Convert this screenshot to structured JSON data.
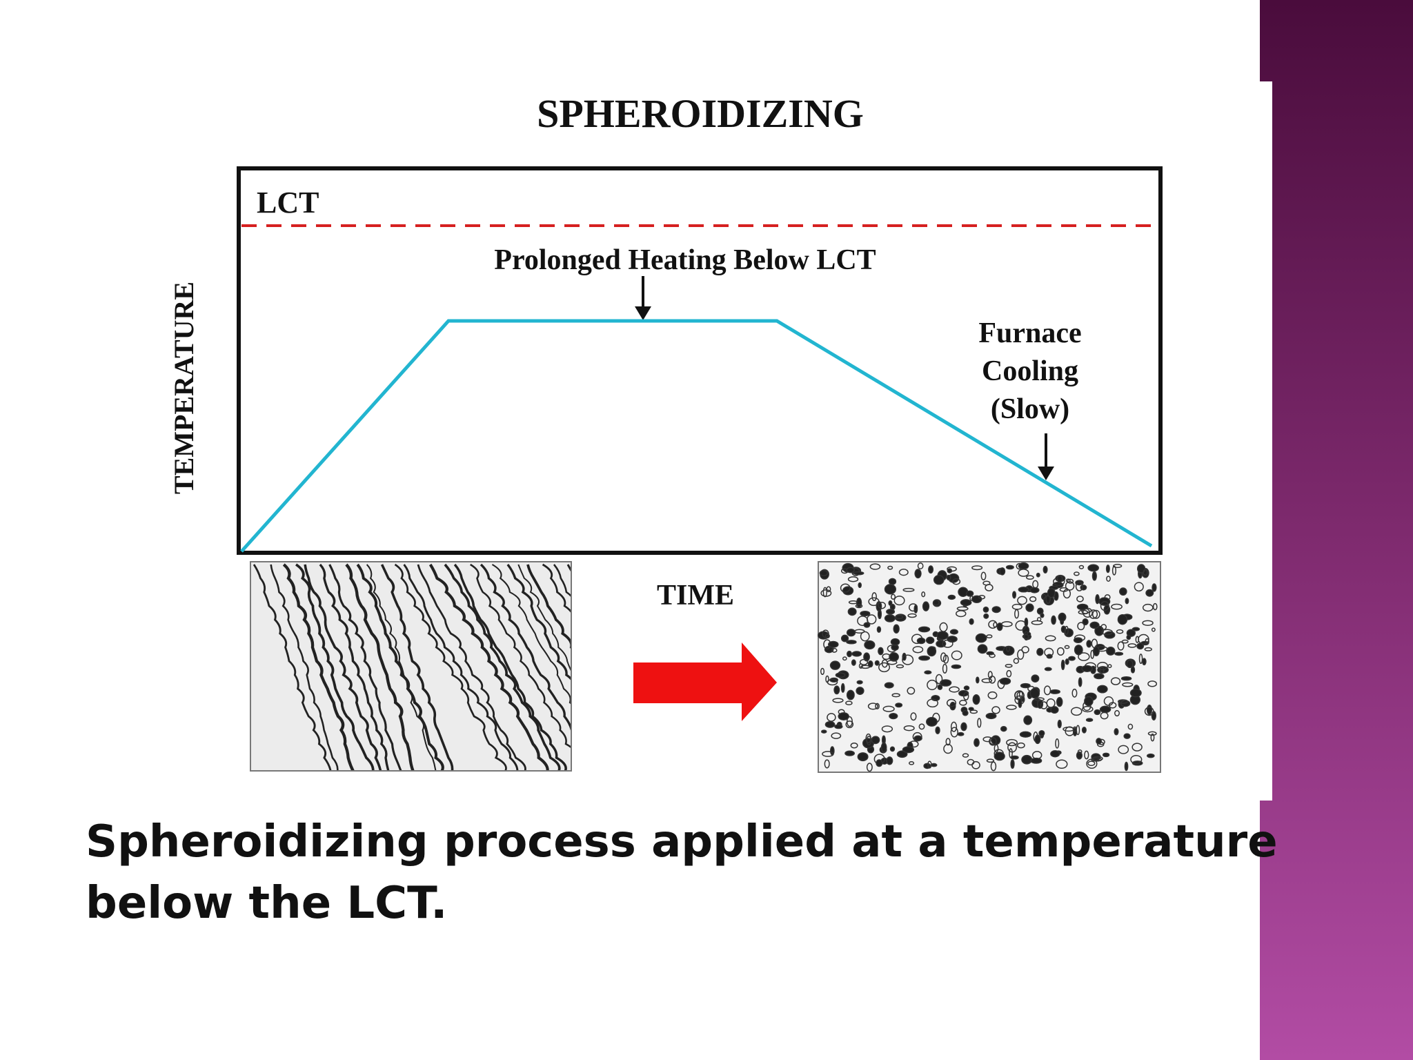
{
  "slide": {
    "diagram": {
      "title": "SPHEROIDIZING",
      "lct_label": "LCT",
      "heating_label": "Prolonged Heating Below LCT",
      "cooling_label": [
        "Furnace",
        "Cooling",
        "(Slow)"
      ],
      "y_axis_label": "TEMPERATURE",
      "x_axis_label": "TIME"
    },
    "caption": [
      "Spheroidizing process applied at a temperature",
      "below the LCT."
    ]
  }
}
